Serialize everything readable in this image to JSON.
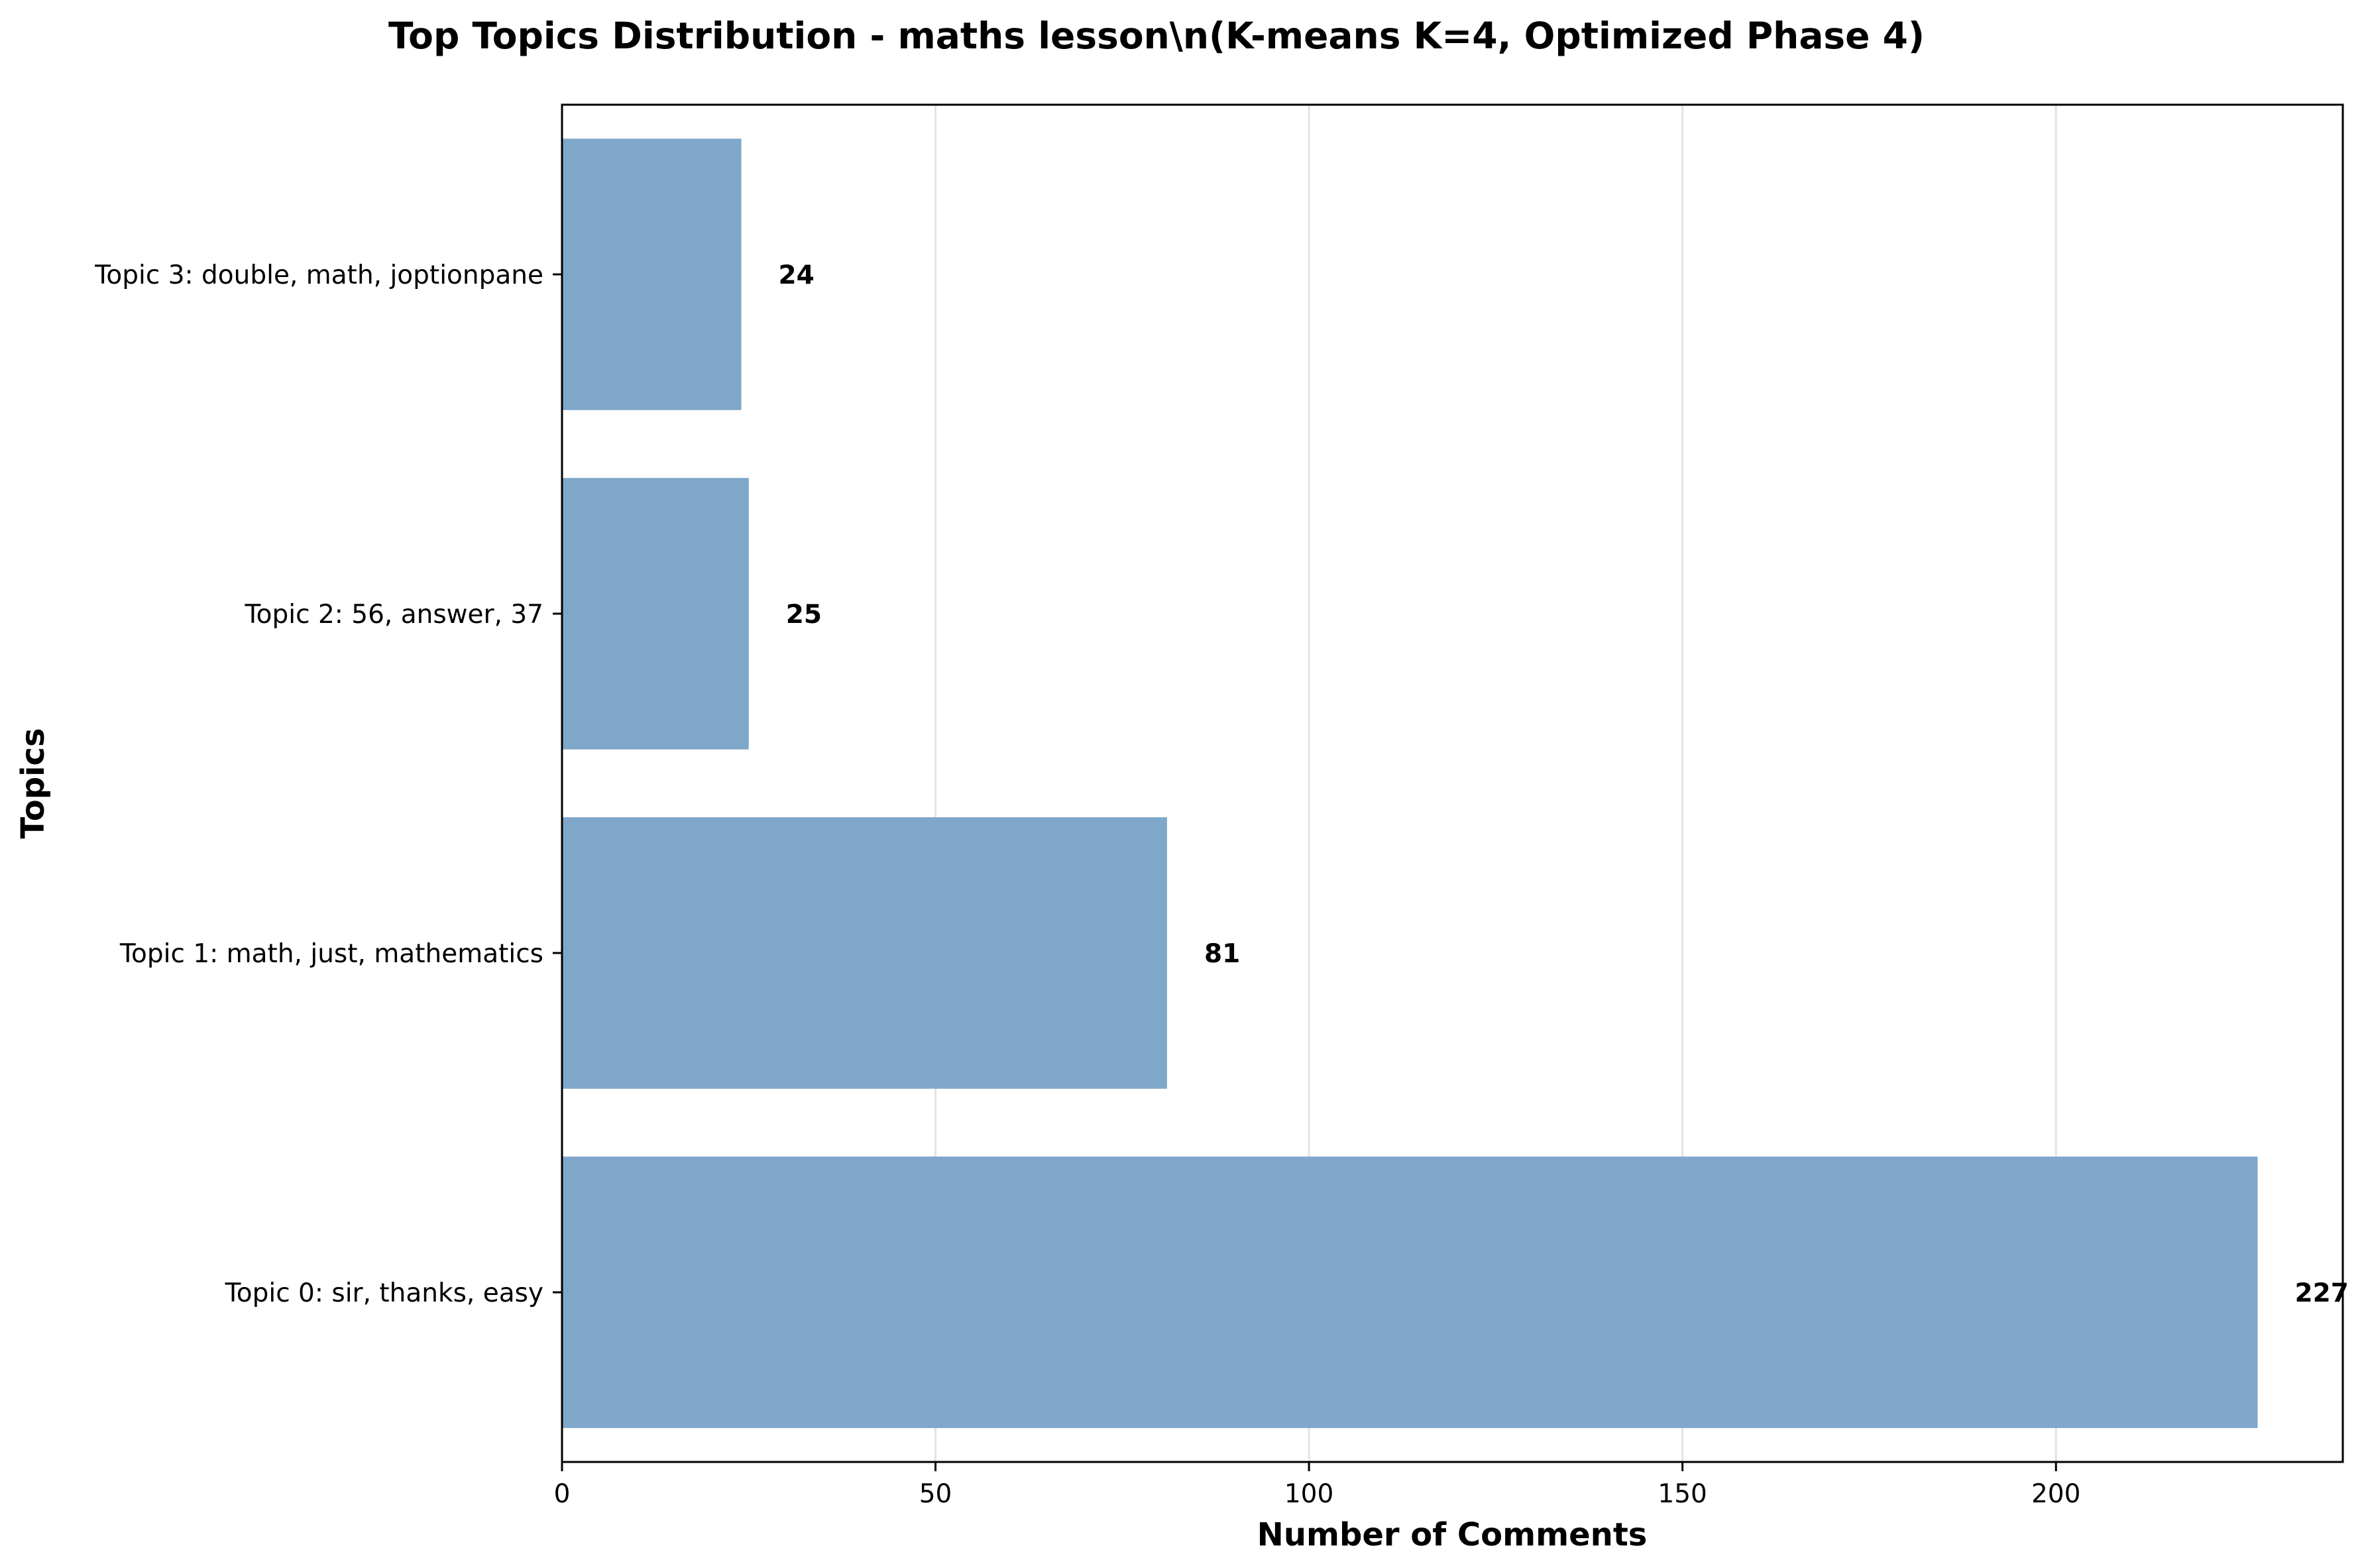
{
  "chart_data": {
    "type": "bar",
    "orientation": "horizontal",
    "title": "Top Topics Distribution - maths lesson\\n(K-means K=4, Optimized Phase 4)",
    "xlabel": "Number of Comments",
    "ylabel": "Topics",
    "categories": [
      "Topic 0: sir, thanks, easy",
      "Topic 1: math, just, mathematics",
      "Topic 2: 56, answer, 37",
      "Topic 3: double, math, joptionpane"
    ],
    "values": [
      227,
      81,
      25,
      24
    ],
    "data_labels": [
      "227",
      "81",
      "25",
      "24"
    ],
    "xlim": [
      0,
      238.4
    ],
    "xticks": [
      0,
      50,
      100,
      150,
      200
    ],
    "xtick_labels": [
      "0",
      "50",
      "100",
      "150",
      "200"
    ],
    "grid": "vertical gridlines on x-axis",
    "colors": {
      "bar": "#7ea7ca",
      "grid": "#e3e3e3",
      "axis": "#000000"
    }
  }
}
